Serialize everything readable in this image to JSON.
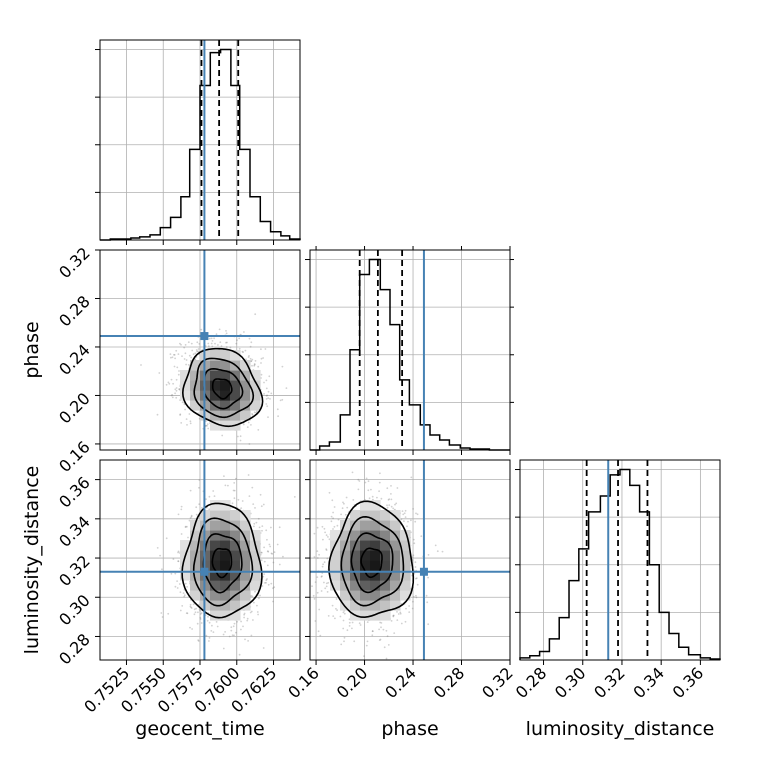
{
  "chart_data": {
    "type": "corner",
    "parameters": [
      "geocent_time",
      "phase",
      "luminosity_distance"
    ],
    "axis_labels": {
      "geocent_time": "geocent_time",
      "phase": "phase",
      "luminosity_distance": "luminosity_distance"
    },
    "ranges": {
      "geocent_time": [
        0.7507,
        0.7643
      ],
      "phase": [
        0.155,
        0.32
      ],
      "luminosity_distance": [
        0.268,
        0.37
      ]
    },
    "ticks": {
      "geocent_time": [
        0.7525,
        0.755,
        0.7575,
        0.76,
        0.7625
      ],
      "phase": [
        0.16,
        0.2,
        0.24,
        0.28,
        0.32
      ],
      "luminosity_distance": [
        0.28,
        0.3,
        0.32,
        0.34,
        0.36
      ]
    },
    "tick_labels": {
      "geocent_time": [
        "0.7525",
        "0.7550",
        "0.7575",
        "0.7600",
        "0.7625"
      ],
      "phase": [
        "0.16",
        "0.20",
        "0.24",
        "0.28",
        "0.32"
      ],
      "luminosity_distance": [
        "0.28",
        "0.30",
        "0.32",
        "0.34",
        "0.36"
      ]
    },
    "truths": {
      "geocent_time": 0.7578,
      "phase": 0.249,
      "luminosity_distance": 0.313
    },
    "quantiles": {
      "geocent_time": [
        0.7576,
        0.7588,
        0.7601
      ],
      "phase": [
        0.196,
        0.211,
        0.231
      ],
      "luminosity_distance": [
        0.302,
        0.318,
        0.333
      ]
    },
    "histograms": {
      "geocent_time": {
        "edges": [
          0.7507,
          0.7514,
          0.7521,
          0.7528,
          0.7534,
          0.7541,
          0.7548,
          0.7555,
          0.7562,
          0.7568,
          0.7575,
          0.7582,
          0.7589,
          0.7596,
          0.7602,
          0.7609,
          0.7616,
          0.7623,
          0.763,
          0.7636,
          0.7643
        ],
        "counts": [
          0,
          1,
          1,
          2,
          3,
          5,
          12,
          22,
          42,
          88,
          150,
          182,
          185,
          150,
          88,
          42,
          18,
          8,
          4,
          1
        ]
      },
      "phase": {
        "edges": [
          0.155,
          0.163,
          0.171,
          0.18,
          0.188,
          0.196,
          0.204,
          0.213,
          0.221,
          0.229,
          0.237,
          0.246,
          0.254,
          0.262,
          0.27,
          0.279,
          0.287,
          0.295,
          0.303,
          0.312,
          0.32
        ],
        "counts": [
          0,
          4,
          8,
          35,
          100,
          175,
          190,
          160,
          125,
          70,
          45,
          25,
          15,
          10,
          5,
          2,
          1,
          1,
          0,
          0
        ]
      },
      "luminosity_distance": {
        "edges": [
          0.268,
          0.273,
          0.278,
          0.283,
          0.288,
          0.293,
          0.298,
          0.303,
          0.309,
          0.314,
          0.319,
          0.324,
          0.329,
          0.334,
          0.339,
          0.344,
          0.349,
          0.354,
          0.36,
          0.365,
          0.37
        ],
        "counts": [
          2,
          4,
          8,
          20,
          40,
          75,
          105,
          140,
          155,
          175,
          180,
          165,
          140,
          90,
          45,
          25,
          12,
          5,
          2,
          1
        ]
      }
    },
    "contours": {
      "geocent_time__phase": {
        "center": [
          0.759,
          0.206
        ],
        "sigma": [
          0.0013,
          0.016
        ],
        "rho": -0.15
      },
      "geocent_time__luminosity_distance": {
        "center": [
          0.759,
          0.318
        ],
        "sigma": [
          0.0013,
          0.0145
        ],
        "rho": 0.0
      },
      "phase__luminosity_distance": {
        "center": [
          0.206,
          0.318
        ],
        "sigma": [
          0.017,
          0.0145
        ],
        "rho": 0.0
      }
    },
    "colors": {
      "truth": "#4682b4",
      "histogram": "#000000",
      "quantile": "#000000",
      "grid": "#b0b0b0",
      "scatter": "#7a7a7a"
    },
    "grid": true
  }
}
